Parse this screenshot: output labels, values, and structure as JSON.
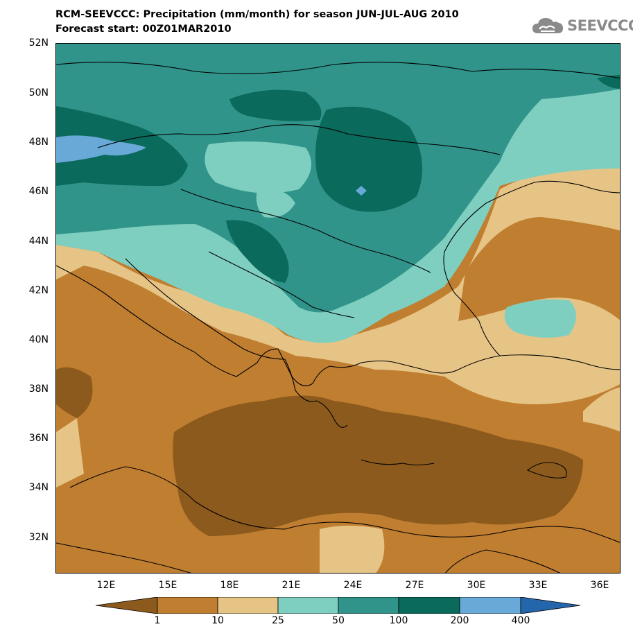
{
  "header": {
    "title": "RCM-SEEVCCC: Precipitation (mm/month) for season JUN-JUL-AUG 2010",
    "subtitle": "Forecast start: 00Z01MAR2010"
  },
  "logo": {
    "text": "SEEVCCC",
    "icon": "cloud-icon"
  },
  "axes": {
    "lat_labels": [
      "52N",
      "50N",
      "48N",
      "46N",
      "44N",
      "42N",
      "40N",
      "38N",
      "36N",
      "34N",
      "32N"
    ],
    "lon_labels": [
      "12E",
      "15E",
      "18E",
      "21E",
      "24E",
      "27E",
      "30E",
      "33E",
      "36E"
    ]
  },
  "legend": {
    "labels": [
      "1",
      "10",
      "25",
      "50",
      "100",
      "200",
      "400"
    ],
    "colors": [
      "#8b5a1c",
      "#c07e31",
      "#e6c486",
      "#7fcfc0",
      "#31948a",
      "#0a6a5b",
      "#69a9d7",
      "#2466ab"
    ]
  }
}
